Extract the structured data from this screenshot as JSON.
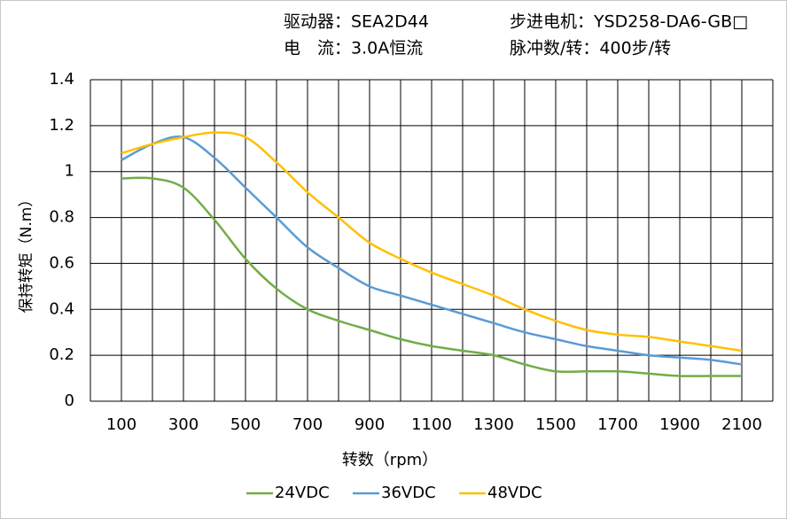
{
  "header": {
    "driver": "驱动器：SEA2D44",
    "motor": "步进电机：YSD258-DA6-GB□",
    "current": "电　流：3.0A恒流",
    "pulses": "脉冲数/转：400步/转"
  },
  "chart_data": {
    "type": "line",
    "xlabel": "转数（rpm）",
    "ylabel": "保持转矩（N.m）",
    "x": [
      100,
      200,
      300,
      400,
      500,
      600,
      700,
      800,
      900,
      1000,
      1100,
      1200,
      1300,
      1400,
      1500,
      1600,
      1700,
      1800,
      1900,
      2000,
      2100
    ],
    "series": [
      {
        "name": "24VDC",
        "color": "#70ad47",
        "values": [
          0.97,
          0.97,
          0.93,
          0.79,
          0.62,
          0.49,
          0.4,
          0.35,
          0.31,
          0.27,
          0.24,
          0.22,
          0.2,
          0.16,
          0.13,
          0.13,
          0.13,
          0.12,
          0.11,
          0.11,
          0.11
        ]
      },
      {
        "name": "36VDC",
        "color": "#5b9bd5",
        "values": [
          1.05,
          1.12,
          1.15,
          1.06,
          0.93,
          0.8,
          0.67,
          0.58,
          0.5,
          0.46,
          0.42,
          0.38,
          0.34,
          0.3,
          0.27,
          0.24,
          0.22,
          0.2,
          0.19,
          0.18,
          0.16
        ]
      },
      {
        "name": "48VDC",
        "color": "#ffc000",
        "values": [
          1.08,
          1.12,
          1.15,
          1.17,
          1.15,
          1.04,
          0.91,
          0.8,
          0.69,
          0.62,
          0.56,
          0.51,
          0.46,
          0.4,
          0.35,
          0.31,
          0.29,
          0.28,
          0.26,
          0.24,
          0.22
        ]
      }
    ],
    "xlim": [
      0,
      2200
    ],
    "xticks": [
      100,
      300,
      500,
      700,
      900,
      1100,
      1300,
      1500,
      1700,
      1900,
      2100
    ],
    "xminor_ticks": [
      0,
      200,
      400,
      600,
      800,
      1000,
      1200,
      1400,
      1600,
      1800,
      2000,
      2200
    ],
    "ylim": [
      0,
      1.4
    ],
    "yticks": [
      0,
      0.2,
      0.4,
      0.6,
      0.8,
      1,
      1.2,
      1.4
    ],
    "grid": true,
    "legend": "bottom"
  }
}
